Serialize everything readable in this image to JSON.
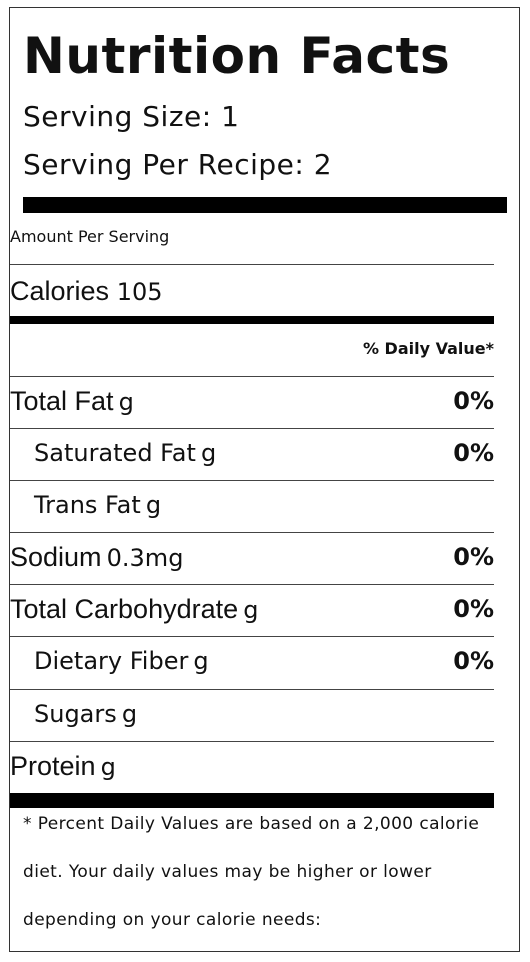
{
  "header": {
    "title": "Nutrition Facts",
    "serving_size": "Serving Size: 1",
    "serving_per_recipe": "Serving Per Recipe: 2"
  },
  "amount_per_serving": "Amount Per Serving",
  "calories": {
    "label": "Calories",
    "value": "105"
  },
  "daily_value_header": "% Daily Value*",
  "nutrients": [
    {
      "label": "Total Fat",
      "amount": "g",
      "percent": "0%"
    },
    {
      "label": "Saturated Fat",
      "amount": "g",
      "percent": "0%"
    },
    {
      "label": "Trans Fat",
      "amount": "g",
      "percent": ""
    },
    {
      "label": "Sodium",
      "amount": "0.3mg",
      "percent": "0%"
    },
    {
      "label": "Total Carbohydrate",
      "amount": "g",
      "percent": "0%"
    },
    {
      "label": "Dietary Fiber",
      "amount": "g",
      "percent": "0%"
    },
    {
      "label": "Sugars",
      "amount": "g",
      "percent": ""
    },
    {
      "label": "Protein",
      "amount": "g",
      "percent": ""
    }
  ],
  "footnote": {
    "line1": "* Percent Daily Values are based on a 2,000 calorie",
    "line2": "diet. Your daily values may be higher or lower",
    "line3": "depending on your calorie needs:"
  }
}
